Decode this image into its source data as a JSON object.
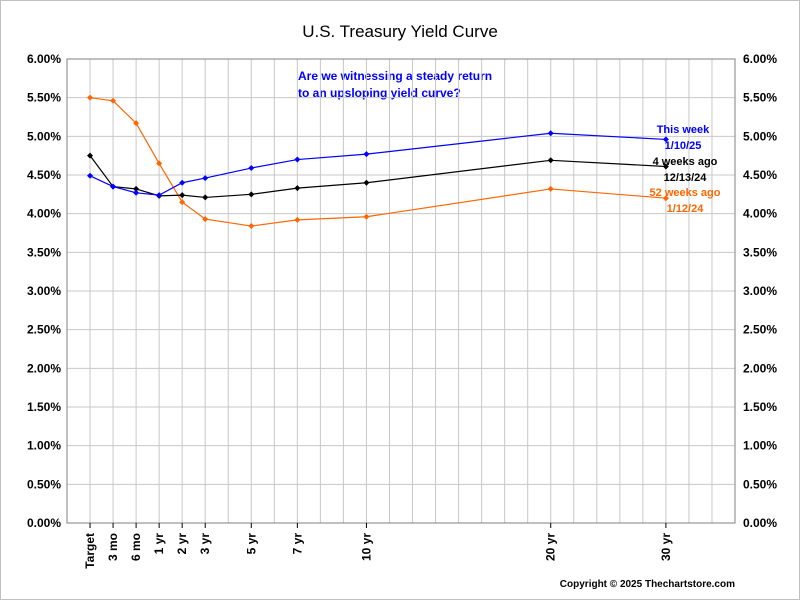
{
  "chart_data": {
    "type": "line",
    "title": "U.S. Treasury Yield Curve",
    "annotation": [
      "Are we witnessing a steady return",
      "to an upsloping yield curve?"
    ],
    "copyright": "Copyright © 2025 Thechartstore.com",
    "categories": [
      "Target",
      "3 mo",
      "6 mo",
      "1 yr",
      "2 yr",
      "3 yr",
      "5 yr",
      "7 yr",
      "10 yr",
      "20 yr",
      "30 yr"
    ],
    "x_positions": [
      0,
      1,
      2,
      3,
      4,
      5,
      7,
      9,
      12,
      20,
      25
    ],
    "x_range": [
      -1,
      28
    ],
    "ylim": [
      0,
      6
    ],
    "y_ticks": [
      "0.00%",
      "0.50%",
      "1.00%",
      "1.50%",
      "2.00%",
      "2.50%",
      "3.00%",
      "3.50%",
      "4.00%",
      "4.50%",
      "5.00%",
      "5.50%",
      "6.00%"
    ],
    "grid": true,
    "series": [
      {
        "name": "52 weeks ago",
        "legend_lines": [
          "52 weeks ago",
          "1/12/24"
        ],
        "color": "#ff6600",
        "values": [
          5.5,
          5.46,
          5.17,
          4.65,
          4.15,
          3.93,
          3.84,
          3.92,
          3.96,
          4.32,
          4.2
        ]
      },
      {
        "name": "4 weeks ago",
        "legend_lines": [
          "4 weeks ago",
          "12/13/24"
        ],
        "color": "#000000",
        "values": [
          4.75,
          4.35,
          4.32,
          4.23,
          4.24,
          4.21,
          4.25,
          4.33,
          4.4,
          4.69,
          4.61
        ]
      },
      {
        "name": "This week",
        "legend_lines": [
          "This week",
          "1/10/25"
        ],
        "color": "#0000ff",
        "values": [
          4.49,
          4.35,
          4.27,
          4.24,
          4.4,
          4.46,
          4.59,
          4.7,
          4.77,
          5.04,
          4.96
        ]
      }
    ]
  },
  "colors": {
    "annotation": "#0000ff",
    "grid": "#c8c8c8",
    "plot_border": "#808080"
  }
}
